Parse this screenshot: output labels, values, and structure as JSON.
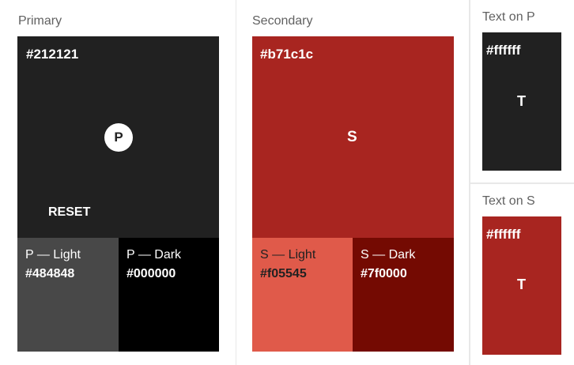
{
  "primary": {
    "title": "Primary",
    "hex": "#212121",
    "fab_label": "P",
    "button_label": "RESET",
    "light": {
      "label": "P — Light",
      "hex": "#484848"
    },
    "dark": {
      "label": "P — Dark",
      "hex": "#000000"
    }
  },
  "secondary": {
    "title": "Secondary",
    "hex": "#b71c1c",
    "center_label": "S",
    "light": {
      "label": "S — Light",
      "hex": "#f05545"
    },
    "dark": {
      "label": "S — Dark",
      "hex": "#7f0000"
    }
  },
  "text_on_primary": {
    "title": "Text on P",
    "hex": "#ffffff",
    "letter": "T"
  },
  "text_on_secondary": {
    "title": "Text on S",
    "hex": "#ffffff",
    "letter": "T"
  },
  "colors": {
    "primary": "#212121",
    "primary_light_display": "#484848",
    "primary_dark": "#000000",
    "secondary_display": "#a82520",
    "secondary_light_display": "#e05a4a",
    "secondary_dark_display": "#740a02",
    "text": "#ffffff"
  }
}
